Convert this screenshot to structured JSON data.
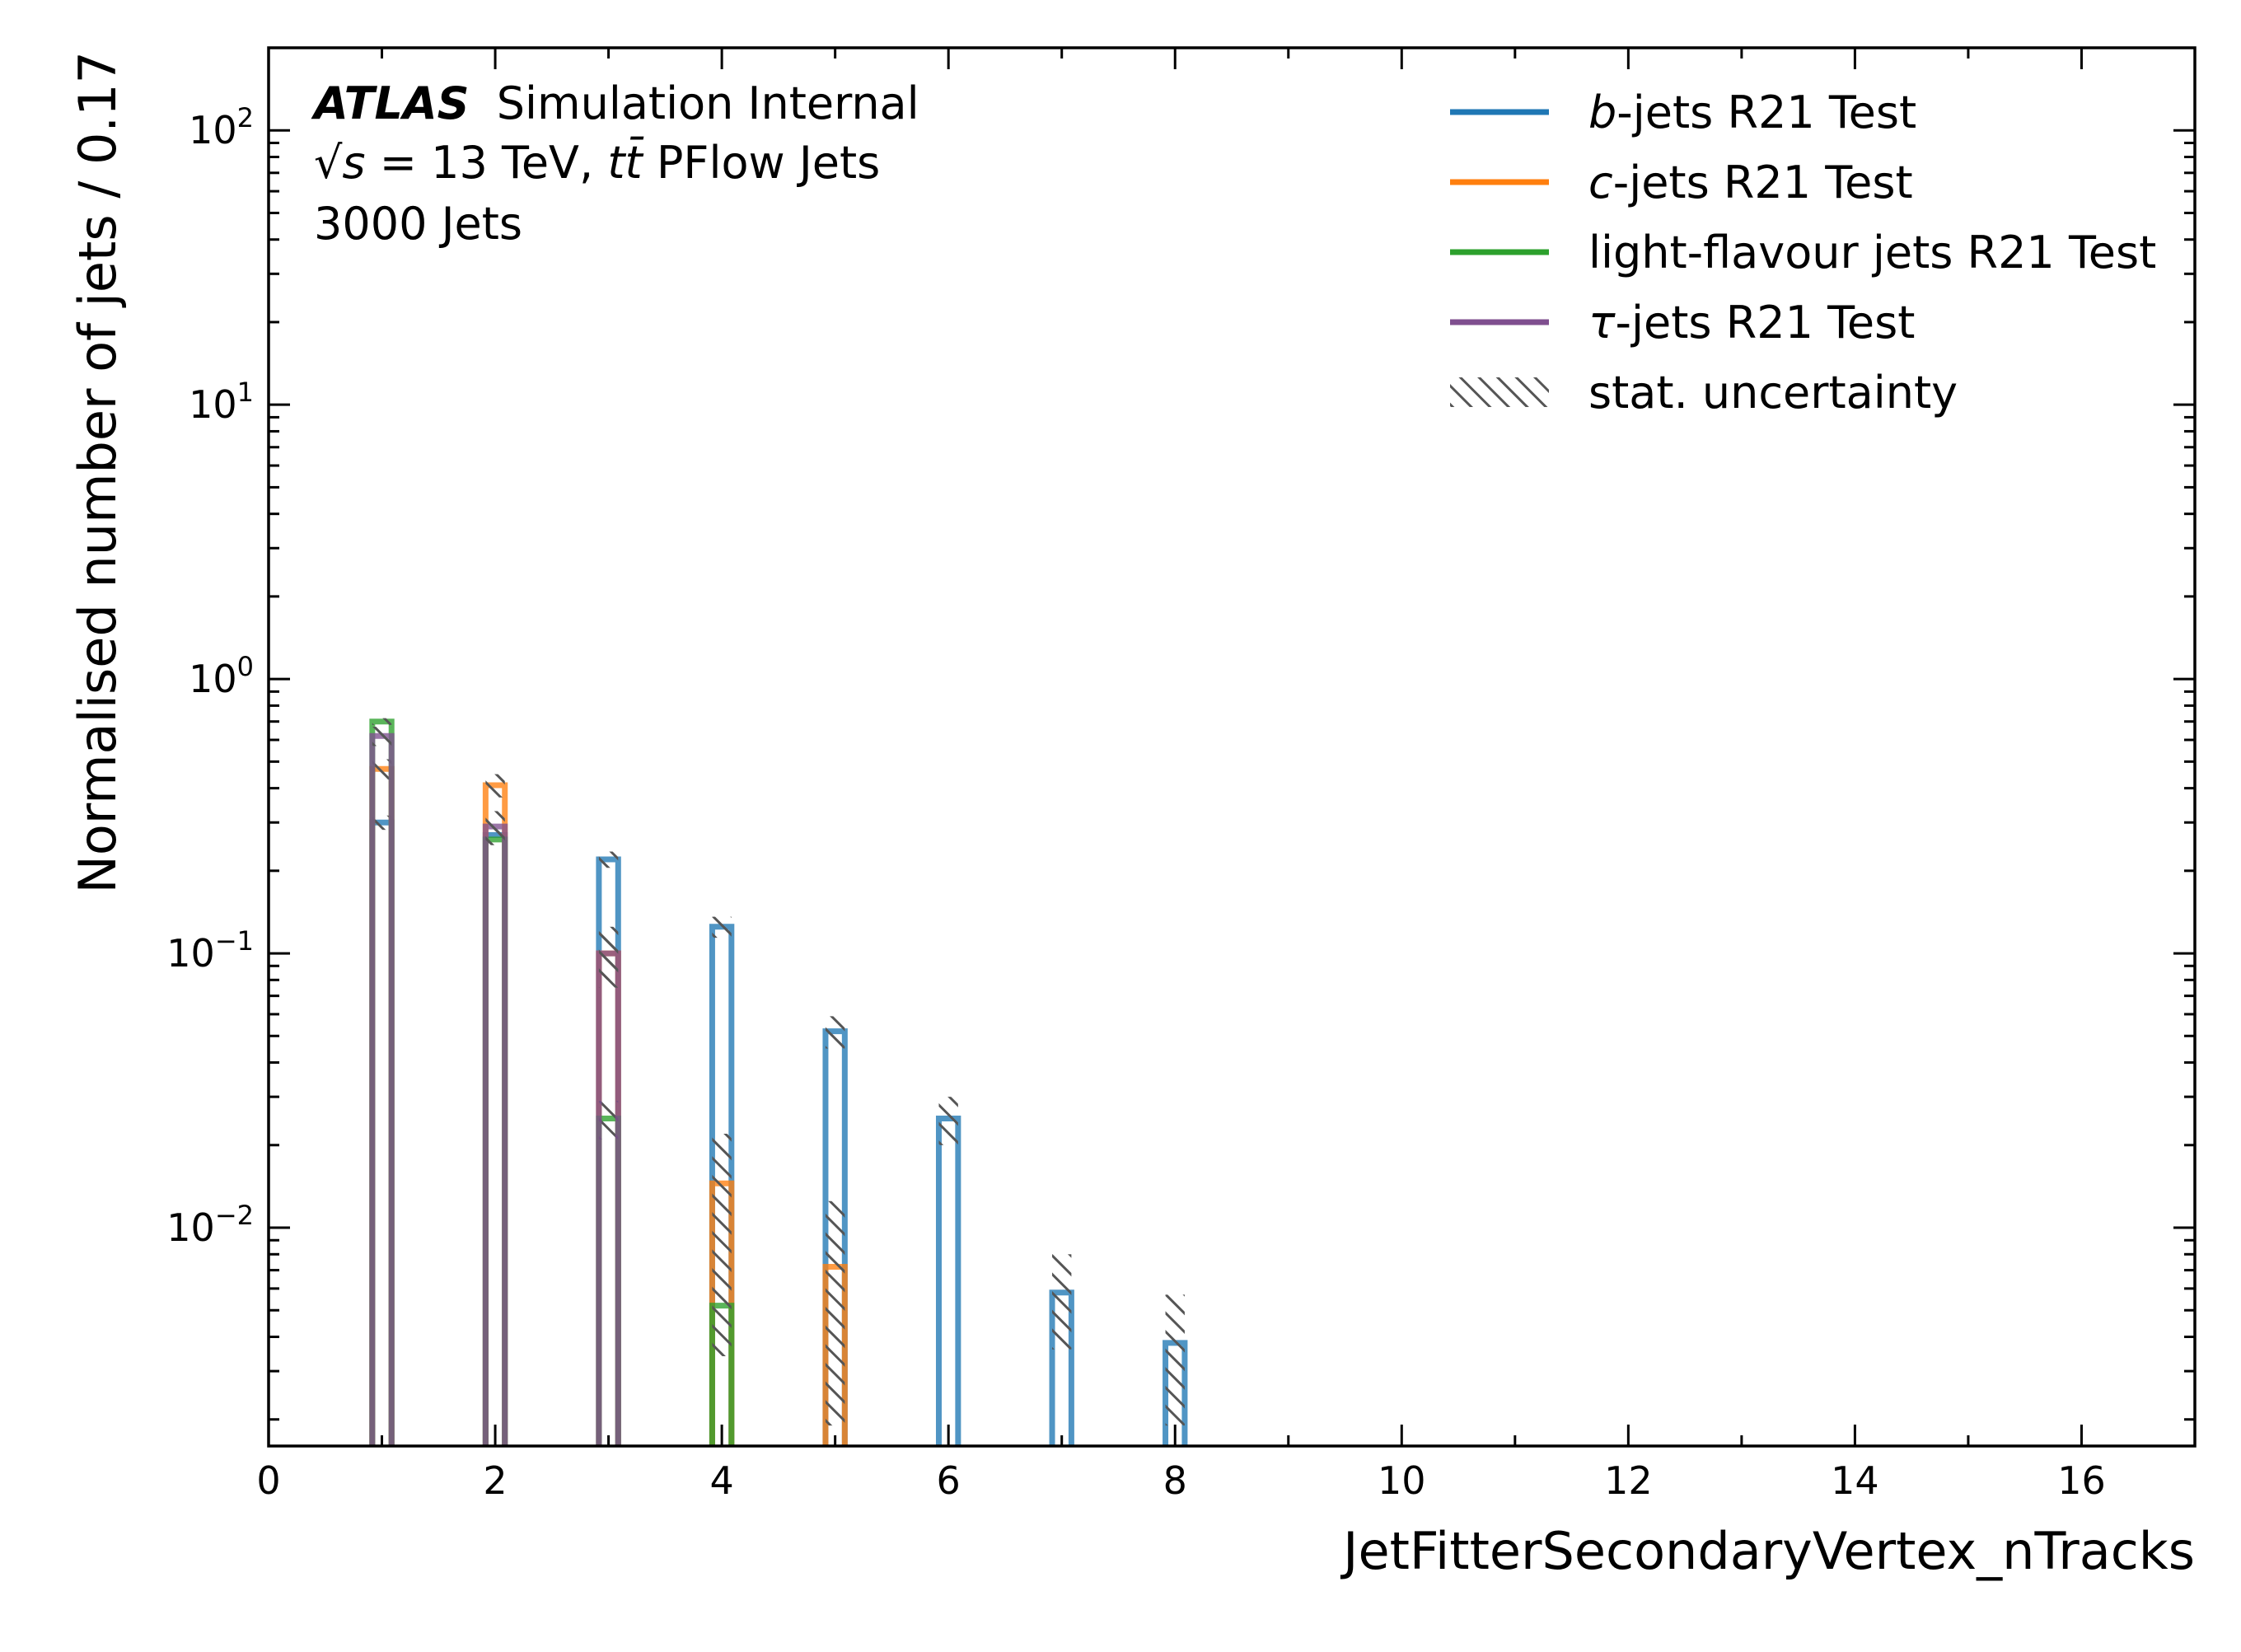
{
  "chart_data": {
    "type": "bar",
    "histtype": "step",
    "xlabel": "JetFitterSecondaryVertex_nTracks",
    "ylabel": "Normalised number of jets / 0.17",
    "xlim": [
      0,
      17
    ],
    "ylim": [
      0.0016,
      200
    ],
    "yscale": "log",
    "bin_width": 0.17,
    "x_ticks": [
      "0",
      "2",
      "4",
      "6",
      "8",
      "10",
      "12",
      "14",
      "16"
    ],
    "y_ticks": [
      {
        "base": "10",
        "exp": "2",
        "value": 100
      },
      {
        "base": "10",
        "exp": "1",
        "value": 10
      },
      {
        "base": "10",
        "exp": "0",
        "value": 1
      },
      {
        "base": "10",
        "exp": "−1",
        "value": 0.1
      },
      {
        "base": "10",
        "exp": "−2",
        "value": 0.01
      }
    ],
    "atlas": {
      "brand": "ATLAS",
      "label": "Simulation Internal",
      "energy_line": "√s = 13 TeV, tt̄ PFlow Jets",
      "energy_sqrt": "√",
      "energy_s": "s",
      "energy_eq": " = 13 TeV, ",
      "energy_t": "tt̄",
      "energy_rest": " PFlow Jets",
      "njets": "3000 Jets"
    },
    "legend_position": "top-right",
    "legend": {
      "stat": "stat. uncertainty"
    },
    "series": [
      {
        "name": "b-jets R21 Test",
        "italic": "b",
        "rest": "-jets R21 Test",
        "color": "#1f77b4",
        "x": [
          1,
          2,
          3,
          4,
          5,
          6,
          7,
          8
        ],
        "values": [
          0.3,
          0.27,
          0.22,
          0.125,
          0.052,
          0.025,
          0.0058,
          0.0038
        ],
        "errors": [
          0.018,
          0.017,
          0.015,
          0.011,
          0.007,
          0.005,
          0.0022,
          0.0019
        ]
      },
      {
        "name": "c-jets R21 Test",
        "italic": "c",
        "rest": "-jets R21 Test",
        "color": "#ff7f0e",
        "x": [
          1,
          2,
          3,
          4,
          5
        ],
        "values": [
          0.47,
          0.41,
          0.1,
          0.0145,
          0.0072
        ],
        "errors": [
          0.04,
          0.04,
          0.02,
          0.0075,
          0.0053
        ]
      },
      {
        "name": "light-flavour jets R21 Test",
        "italic": "",
        "rest": "light-flavour jets R21 Test",
        "color": "#2ca02c",
        "x": [
          1,
          2,
          3,
          4
        ],
        "values": [
          0.7,
          0.26,
          0.025,
          0.0052
        ],
        "errors": [
          0.02,
          0.012,
          0.004,
          0.0018
        ]
      },
      {
        "name": "τ-jets R21 Test",
        "italic": "τ",
        "rest": "-jets R21 Test",
        "color": "#7f4f8f",
        "x": [
          1,
          2,
          3
        ],
        "values": [
          0.62,
          0.29,
          0.1
        ],
        "errors": [
          0.05,
          0.04,
          0.025
        ]
      }
    ]
  }
}
